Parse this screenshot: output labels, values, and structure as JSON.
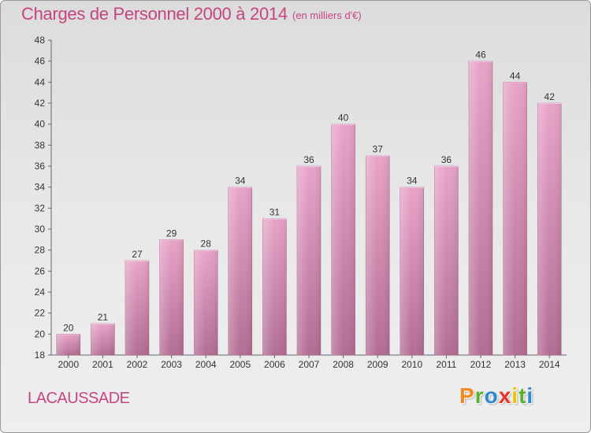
{
  "chart_data": {
    "type": "bar",
    "title": "Charges de Personnel 2000 à 2014",
    "subtitle": "(en milliers d'€)",
    "categories": [
      "2000",
      "2001",
      "2002",
      "2003",
      "2004",
      "2005",
      "2006",
      "2007",
      "2008",
      "2009",
      "2010",
      "2011",
      "2012",
      "2013",
      "2014"
    ],
    "values": [
      20,
      21,
      27,
      29,
      28,
      34,
      31,
      36,
      40,
      37,
      34,
      36,
      46,
      44,
      42
    ],
    "yticks": [
      18,
      20,
      22,
      24,
      26,
      28,
      30,
      32,
      34,
      36,
      38,
      40,
      42,
      44,
      46,
      48
    ],
    "ylim": [
      18,
      48
    ],
    "grid": false,
    "bar_color": "#d98fb6",
    "xlabel": "",
    "ylabel": ""
  },
  "location": "LACAUSSADE",
  "logo": {
    "letters": [
      "P",
      "r",
      "o",
      "x",
      "i",
      "t",
      "i"
    ],
    "colors": [
      "#f28a1e",
      "#5ab031",
      "#2f87d0",
      "#e8342a",
      "#f2c300",
      "#5ab031",
      "#2f87d0"
    ]
  },
  "colors": {
    "accent": "#c5467e",
    "bar": "#d98fb6",
    "bar_dark": "#b56e95"
  }
}
